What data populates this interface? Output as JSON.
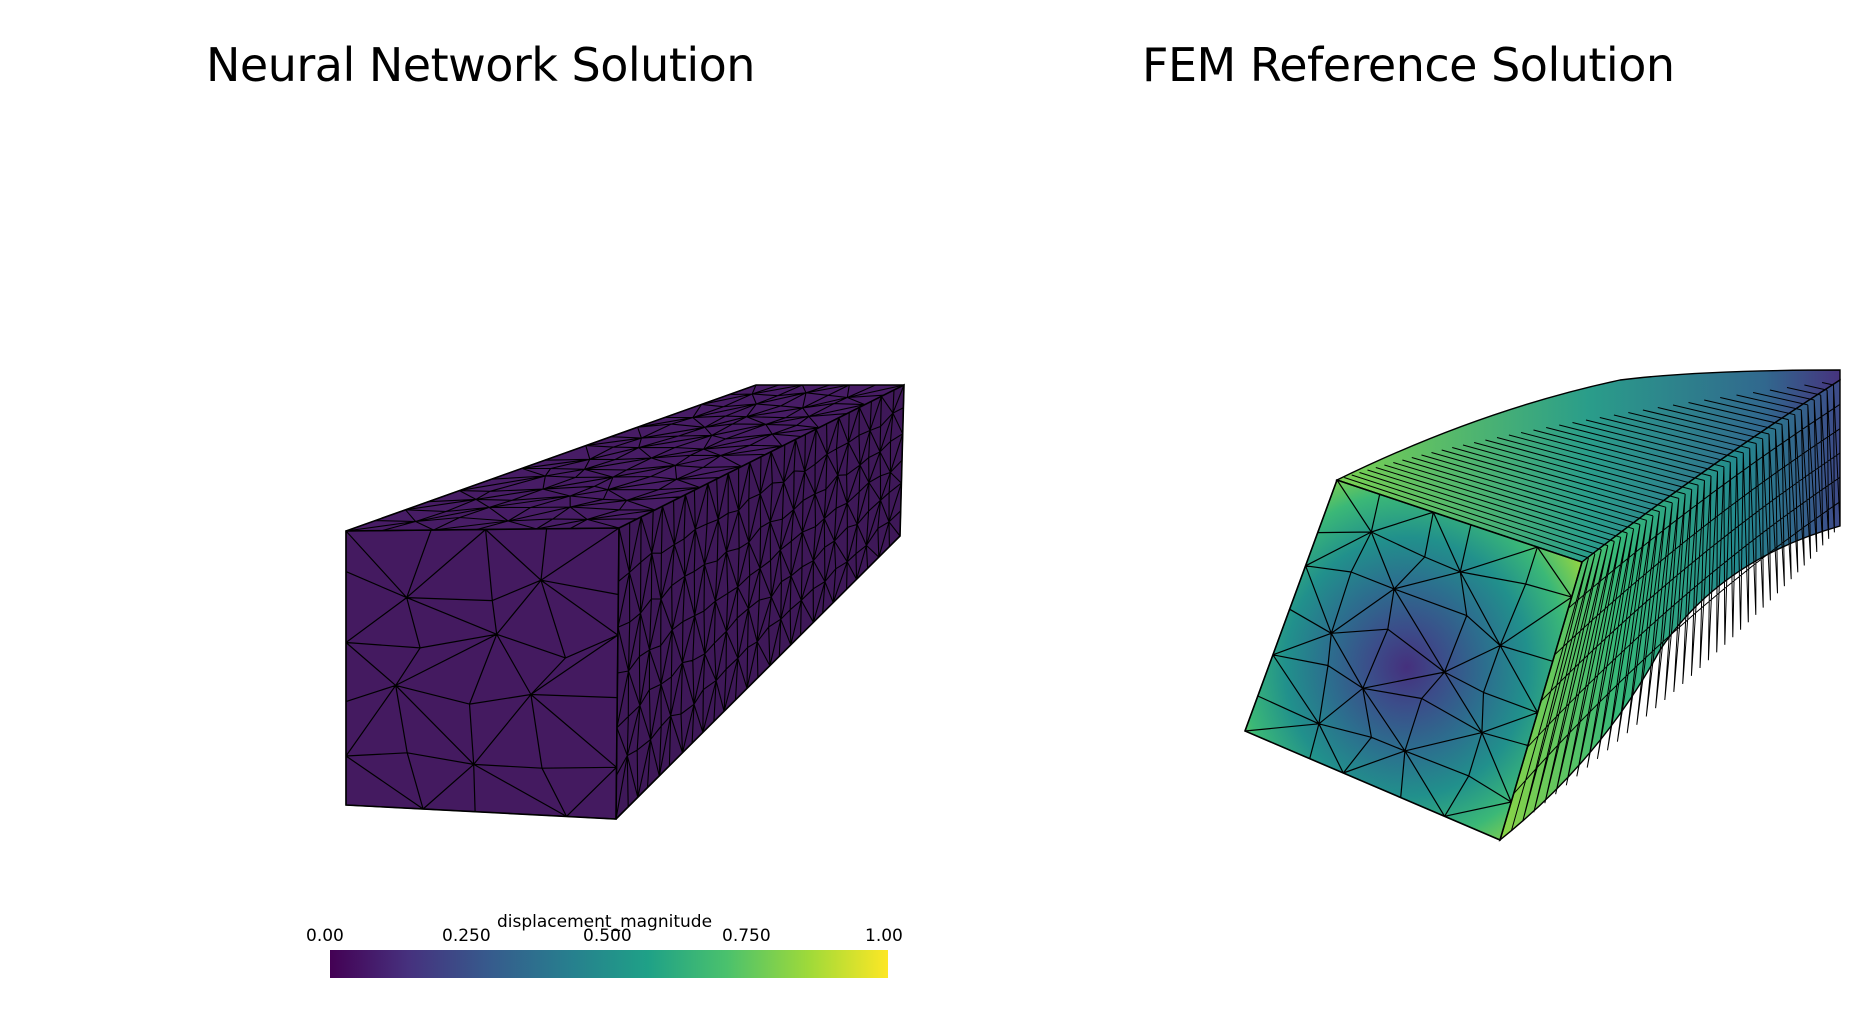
{
  "left_panel": {
    "title": "Neural Network Solution"
  },
  "right_panel": {
    "title": "FEM Reference Solution"
  },
  "colorbar": {
    "title": "displacement_magnitude",
    "ticks": [
      "0.00",
      "0.250",
      "0.500",
      "0.750",
      "1.00"
    ],
    "colormap": "viridis"
  },
  "colors": {
    "nn_face": "#441a60",
    "nn_side": "#3e1858",
    "nn_top": "#471c65",
    "mesh_line": "#000000",
    "viridis": [
      "#440154",
      "#46317e",
      "#365c8d",
      "#277f8e",
      "#1fa187",
      "#4ac16d",
      "#a0da39",
      "#fde725"
    ]
  }
}
